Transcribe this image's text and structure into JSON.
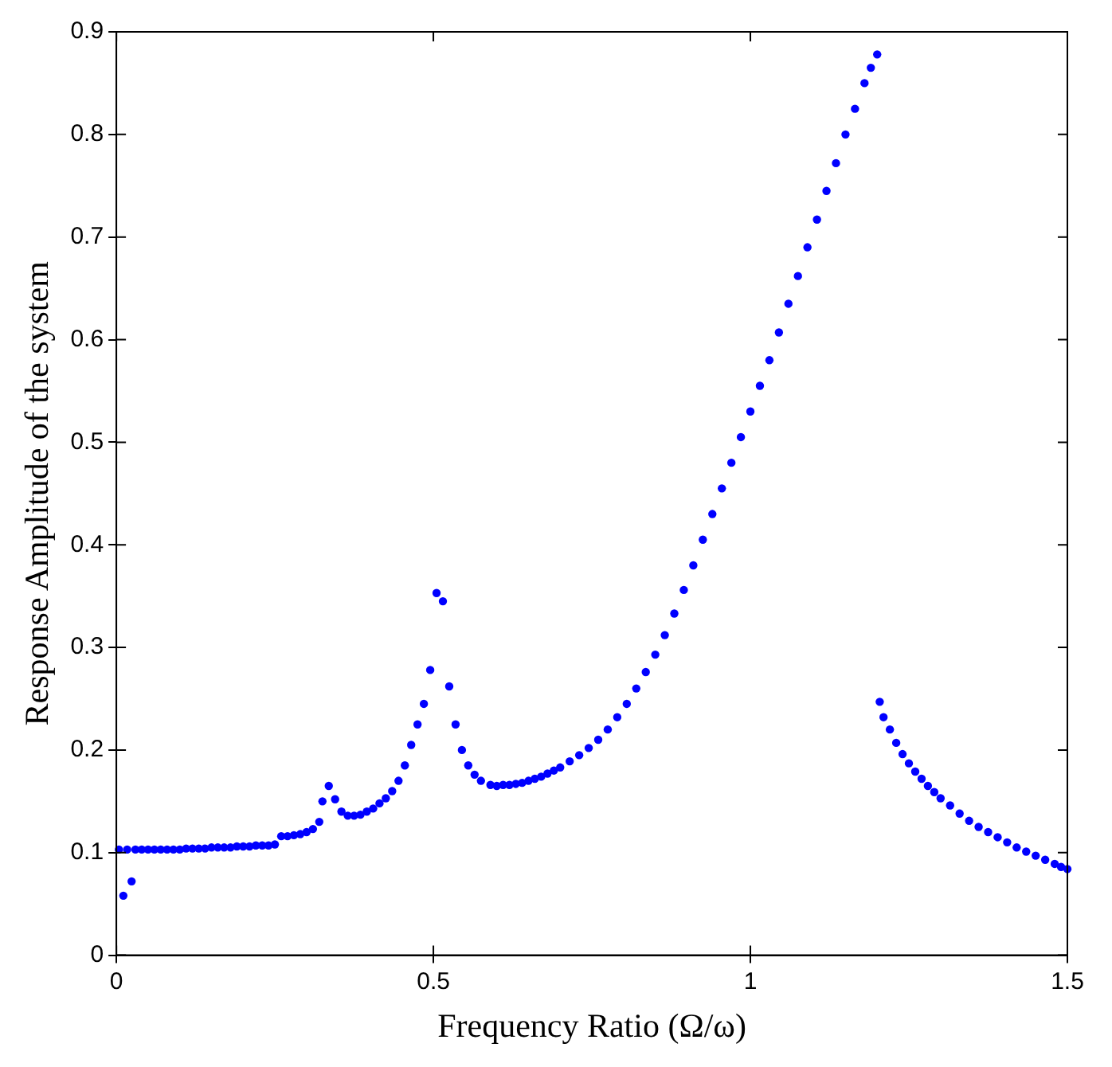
{
  "chart_data": {
    "type": "scatter",
    "xlabel": "Frequency Ratio (Ω/ω)",
    "ylabel": "Response Amplitude of the system",
    "xlim": [
      0,
      1.5
    ],
    "ylim": [
      0,
      0.9
    ],
    "xticks": [
      0,
      0.5,
      1,
      1.5
    ],
    "yticks": [
      0,
      0.1,
      0.2,
      0.3,
      0.4,
      0.5,
      0.6,
      0.7,
      0.8,
      0.9
    ],
    "grid": false,
    "legend": false,
    "marker": "circle",
    "series": [
      {
        "color": "#0000ff",
        "x": [
          0.004,
          0.017,
          0.011,
          0.024,
          0.03,
          0.04,
          0.05,
          0.06,
          0.07,
          0.08,
          0.09,
          0.1,
          0.11,
          0.12,
          0.13,
          0.14,
          0.15,
          0.16,
          0.17,
          0.18,
          0.19,
          0.2,
          0.21,
          0.22,
          0.23,
          0.24,
          0.25,
          0.26,
          0.27,
          0.28,
          0.29,
          0.3,
          0.31,
          0.32,
          0.325,
          0.335,
          0.345,
          0.355,
          0.365,
          0.375,
          0.385,
          0.395,
          0.405,
          0.415,
          0.425,
          0.435,
          0.445,
          0.455,
          0.465,
          0.475,
          0.485,
          0.495,
          0.505,
          0.515,
          0.525,
          0.535,
          0.545,
          0.555,
          0.565,
          0.575,
          0.59,
          0.6,
          0.61,
          0.62,
          0.63,
          0.64,
          0.65,
          0.66,
          0.67,
          0.68,
          0.69,
          0.7,
          0.715,
          0.73,
          0.745,
          0.76,
          0.775,
          0.79,
          0.805,
          0.82,
          0.835,
          0.85,
          0.865,
          0.88,
          0.895,
          0.91,
          0.925,
          0.94,
          0.955,
          0.97,
          0.985,
          1.0,
          1.015,
          1.03,
          1.045,
          1.06,
          1.075,
          1.09,
          1.105,
          1.12,
          1.135,
          1.15,
          1.165,
          1.18,
          1.19,
          1.2,
          1.204,
          1.21,
          1.22,
          1.23,
          1.24,
          1.25,
          1.26,
          1.27,
          1.28,
          1.29,
          1.3,
          1.315,
          1.33,
          1.345,
          1.36,
          1.375,
          1.39,
          1.405,
          1.42,
          1.435,
          1.45,
          1.465,
          1.48,
          1.49,
          1.5
        ],
        "values": [
          0.103,
          0.103,
          0.058,
          0.072,
          0.103,
          0.103,
          0.103,
          0.103,
          0.103,
          0.103,
          0.103,
          0.103,
          0.104,
          0.104,
          0.104,
          0.104,
          0.105,
          0.105,
          0.105,
          0.105,
          0.106,
          0.106,
          0.106,
          0.107,
          0.107,
          0.107,
          0.108,
          0.116,
          0.116,
          0.117,
          0.118,
          0.12,
          0.123,
          0.13,
          0.15,
          0.165,
          0.152,
          0.14,
          0.136,
          0.136,
          0.137,
          0.14,
          0.143,
          0.148,
          0.153,
          0.16,
          0.17,
          0.185,
          0.205,
          0.225,
          0.245,
          0.278,
          0.353,
          0.345,
          0.262,
          0.225,
          0.2,
          0.185,
          0.176,
          0.17,
          0.166,
          0.165,
          0.166,
          0.166,
          0.167,
          0.168,
          0.17,
          0.172,
          0.174,
          0.177,
          0.18,
          0.183,
          0.189,
          0.195,
          0.202,
          0.21,
          0.22,
          0.232,
          0.245,
          0.26,
          0.276,
          0.293,
          0.312,
          0.333,
          0.356,
          0.38,
          0.405,
          0.43,
          0.455,
          0.48,
          0.505,
          0.53,
          0.555,
          0.58,
          0.607,
          0.635,
          0.662,
          0.69,
          0.717,
          0.745,
          0.772,
          0.8,
          0.825,
          0.85,
          0.865,
          0.878,
          0.247,
          0.232,
          0.22,
          0.207,
          0.196,
          0.187,
          0.179,
          0.172,
          0.165,
          0.159,
          0.153,
          0.146,
          0.138,
          0.131,
          0.125,
          0.12,
          0.115,
          0.11,
          0.105,
          0.101,
          0.097,
          0.093,
          0.089,
          0.086,
          0.084
        ]
      }
    ]
  }
}
